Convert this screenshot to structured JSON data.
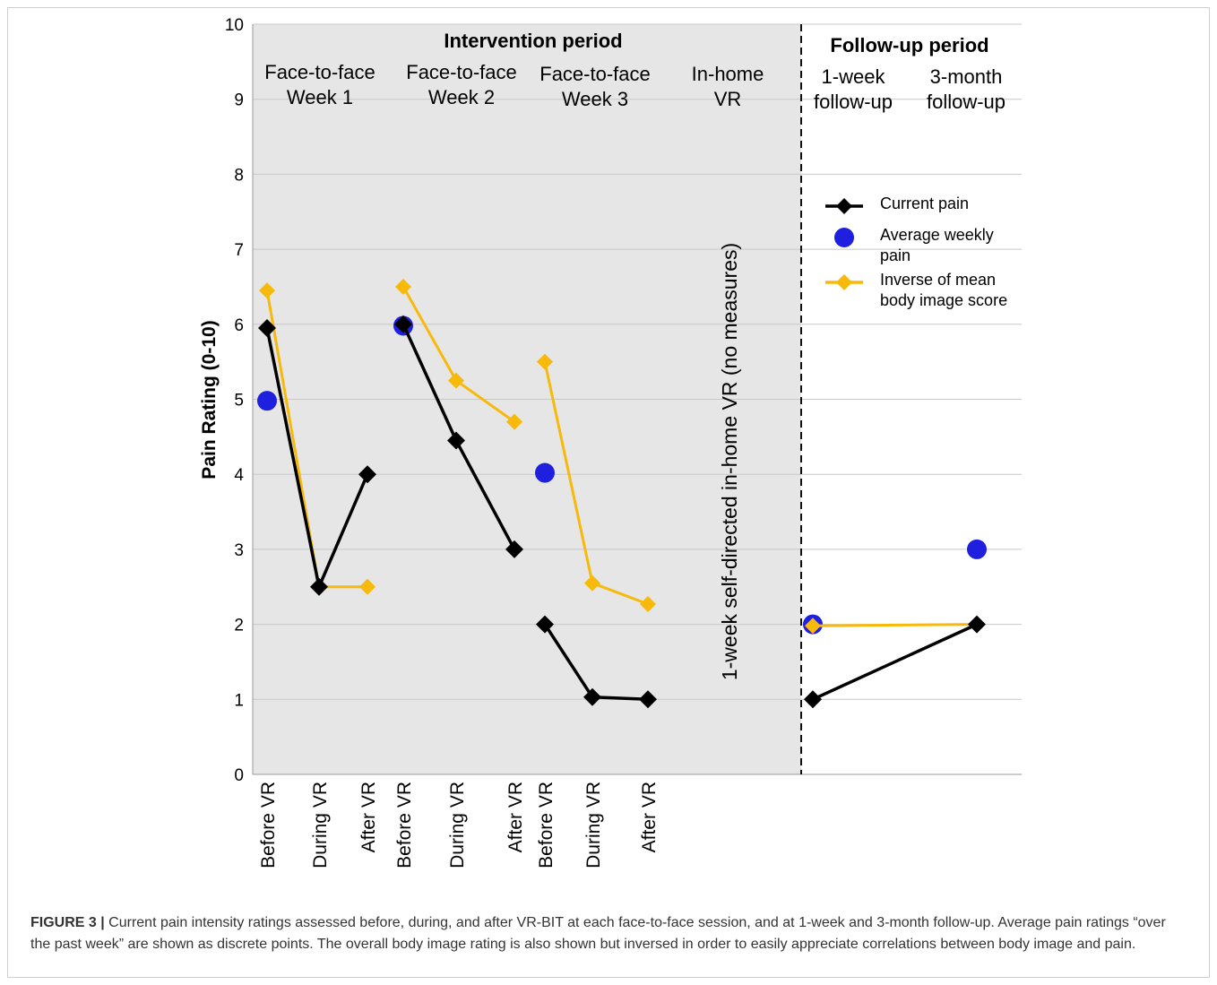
{
  "chart_data": {
    "type": "line",
    "ylabel": "Pain Rating (0-10)",
    "ylim": [
      0,
      10
    ],
    "yticks": [
      0,
      1,
      2,
      3,
      4,
      5,
      6,
      7,
      8,
      9,
      10
    ],
    "grid": true,
    "x_tick_labels": [
      "Before VR",
      "During VR",
      "After VR",
      "Before VR",
      "During VR",
      "After VR",
      "Before VR",
      "During VR",
      "After VR"
    ],
    "periods": [
      {
        "title": "Intervention period",
        "shaded": true
      },
      {
        "title": "Follow-up period",
        "shaded": false
      }
    ],
    "sessions": [
      {
        "line1": "Face-to-face",
        "line2": "Week 1"
      },
      {
        "line1": "Face-to-face",
        "line2": "Week 2"
      },
      {
        "line1": "Face-to-face",
        "line2": "Week 3"
      },
      {
        "line1": "In-home",
        "line2": "VR"
      },
      {
        "line1": "1-week",
        "line2": "follow-up"
      },
      {
        "line1": "3-month",
        "line2": "follow-up"
      }
    ],
    "annotation": "1-week self-directed in-home VR (no measures)",
    "legend_placement": "right",
    "series": [
      {
        "name": "Current pain",
        "color": "#000000",
        "marker": "diamond",
        "segments": [
          [
            {
              "slot": 0,
              "y": 5.95
            },
            {
              "slot": 1,
              "y": 2.5
            },
            {
              "slot": 2,
              "y": 4.0
            }
          ],
          [
            {
              "slot": 3,
              "y": 6.0
            },
            {
              "slot": 4,
              "y": 4.45
            },
            {
              "slot": 5,
              "y": 3.0
            }
          ],
          [
            {
              "slot": 6,
              "y": 2.0
            },
            {
              "slot": 7,
              "y": 1.03
            },
            {
              "slot": 8,
              "y": 1.0
            }
          ],
          [
            {
              "slot": "1w",
              "y": 1.0
            },
            {
              "slot": "3m",
              "y": 2.0
            }
          ]
        ]
      },
      {
        "name": "Average weekly pain",
        "color": "#1f1fe0",
        "marker": "circle",
        "points": [
          {
            "slot": 0,
            "y": 4.98
          },
          {
            "slot": 3,
            "y": 5.98
          },
          {
            "slot": 6,
            "y": 4.02
          },
          {
            "slot": "1w",
            "y": 2.0
          },
          {
            "slot": "3m",
            "y": 3.0
          }
        ]
      },
      {
        "name": "Inverse of mean body image score",
        "color": "#f7b90b",
        "marker": "diamond",
        "segments": [
          [
            {
              "slot": 0,
              "y": 6.45
            },
            {
              "slot": 1,
              "y": 2.5
            },
            {
              "slot": 2,
              "y": 2.5
            }
          ],
          [
            {
              "slot": 3,
              "y": 6.5
            },
            {
              "slot": 4,
              "y": 5.25
            },
            {
              "slot": 5,
              "y": 4.7
            }
          ],
          [
            {
              "slot": 6,
              "y": 5.5
            },
            {
              "slot": 7,
              "y": 2.55
            },
            {
              "slot": 8,
              "y": 2.27
            }
          ],
          [
            {
              "slot": "1w",
              "y": 1.98
            },
            {
              "slot": "3m",
              "y": 2.0
            }
          ]
        ]
      }
    ],
    "legend": [
      {
        "label_line1": "Current pain",
        "label_line2": "",
        "series": 0
      },
      {
        "label_line1": "Average weekly",
        "label_line2": "pain",
        "series": 1
      },
      {
        "label_line1": "Inverse of mean",
        "label_line2": "body image score",
        "series": 2
      }
    ]
  },
  "caption": {
    "label": "FIGURE 3 |",
    "text": " Current pain intensity ratings assessed before, during, and after VR-BIT at each face-to-face session, and at 1-week and 3-month follow-up. Average pain ratings “over the past week” are shown as discrete points. The overall body image rating is also shown but inversed in order to easily appreciate correlations between body image and pain."
  }
}
